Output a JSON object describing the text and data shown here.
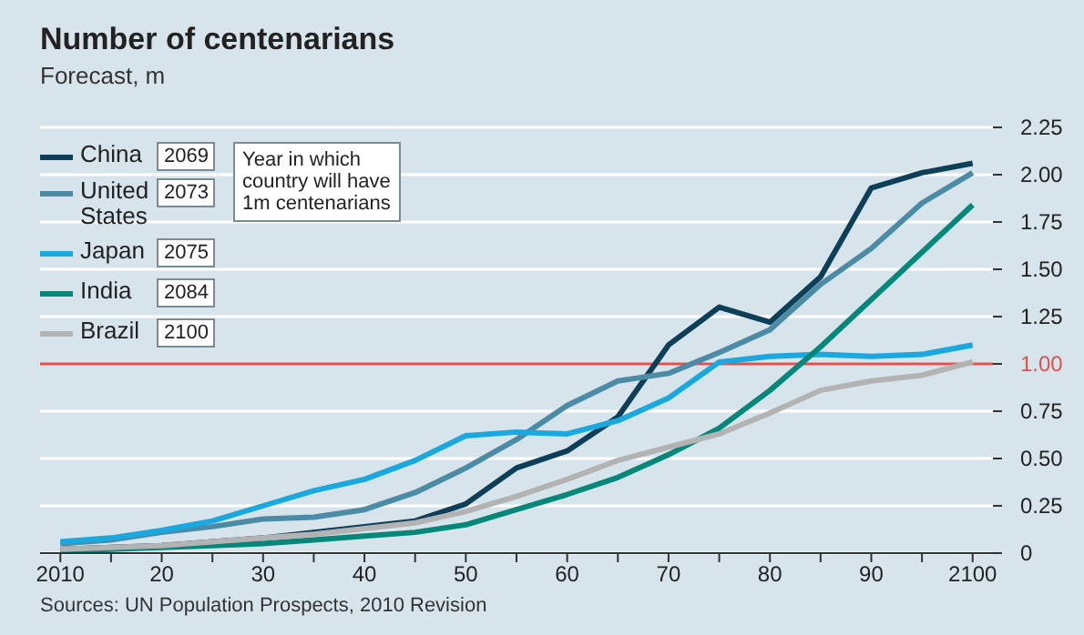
{
  "chart_data": {
    "type": "line",
    "title": "Number of centenarians",
    "subtitle": "Forecast, m",
    "x": [
      2010,
      2015,
      2020,
      2025,
      2030,
      2035,
      2040,
      2045,
      2050,
      2055,
      2060,
      2065,
      2070,
      2075,
      2080,
      2085,
      2090,
      2095,
      2100
    ],
    "series": [
      {
        "name": "China",
        "color": "#0d3f58",
        "values": [
          0.02,
          0.03,
          0.04,
          0.06,
          0.08,
          0.11,
          0.14,
          0.17,
          0.26,
          0.45,
          0.54,
          0.72,
          1.1,
          1.3,
          1.22,
          1.46,
          1.93,
          2.01,
          2.06
        ]
      },
      {
        "name": "United States",
        "color": "#4b8ba6",
        "values": [
          0.05,
          0.07,
          0.11,
          0.14,
          0.18,
          0.19,
          0.23,
          0.32,
          0.45,
          0.6,
          0.78,
          0.91,
          0.95,
          1.06,
          1.18,
          1.42,
          1.61,
          1.85,
          2.01
        ]
      },
      {
        "name": "Japan",
        "color": "#1aa8e0",
        "values": [
          0.06,
          0.08,
          0.12,
          0.17,
          0.25,
          0.33,
          0.39,
          0.49,
          0.62,
          0.64,
          0.63,
          0.7,
          0.82,
          1.01,
          1.04,
          1.05,
          1.04,
          1.05,
          1.1
        ]
      },
      {
        "name": "India",
        "color": "#05877a",
        "values": [
          0.01,
          0.02,
          0.03,
          0.04,
          0.05,
          0.07,
          0.09,
          0.11,
          0.15,
          0.23,
          0.31,
          0.4,
          0.52,
          0.66,
          0.86,
          1.09,
          1.34,
          1.59,
          1.84
        ]
      },
      {
        "name": "Brazil",
        "color": "#b3b3b3",
        "values": [
          0.02,
          0.03,
          0.04,
          0.06,
          0.08,
          0.1,
          0.13,
          0.16,
          0.22,
          0.3,
          0.39,
          0.49,
          0.56,
          0.63,
          0.74,
          0.86,
          0.91,
          0.94,
          1.01
        ]
      }
    ],
    "xlim": [
      2008,
      2102
    ],
    "xticks": [
      {
        "value": 2010,
        "label": "2010"
      },
      {
        "value": 2015,
        "label": null
      },
      {
        "value": 2020,
        "label": "20"
      },
      {
        "value": 2025,
        "label": null
      },
      {
        "value": 2030,
        "label": "30"
      },
      {
        "value": 2035,
        "label": null
      },
      {
        "value": 2040,
        "label": "40"
      },
      {
        "value": 2045,
        "label": null
      },
      {
        "value": 2050,
        "label": "50"
      },
      {
        "value": 2055,
        "label": null
      },
      {
        "value": 2060,
        "label": "60"
      },
      {
        "value": 2065,
        "label": null
      },
      {
        "value": 2070,
        "label": "70"
      },
      {
        "value": 2075,
        "label": null
      },
      {
        "value": 2080,
        "label": "80"
      },
      {
        "value": 2085,
        "label": null
      },
      {
        "value": 2090,
        "label": "90"
      },
      {
        "value": 2095,
        "label": null
      },
      {
        "value": 2100,
        "label": "2100"
      }
    ],
    "ylim": [
      0,
      2.25
    ],
    "yticks": [
      {
        "value": 0,
        "label": "0"
      },
      {
        "value": 0.25,
        "label": "0.25"
      },
      {
        "value": 0.5,
        "label": "0.50"
      },
      {
        "value": 0.75,
        "label": "0.75"
      },
      {
        "value": 1,
        "label": "1.00"
      },
      {
        "value": 1.25,
        "label": "1.25"
      },
      {
        "value": 1.5,
        "label": "1.50"
      },
      {
        "value": 1.75,
        "label": "1.75"
      },
      {
        "value": 2,
        "label": "2.00"
      },
      {
        "value": 2.25,
        "label": "2.25"
      }
    ],
    "ref_lines": [
      {
        "axis": "y",
        "value": 1,
        "color": "#e0504f"
      }
    ],
    "grid": "y",
    "legend": "top left",
    "marker": "none",
    "line_style": "solid",
    "annotations": [
      "2069",
      "2073",
      "2075",
      "2084",
      "2100",
      "Year in which country will have 1m centenarians",
      "Sources: UN Population Prospects, 2010 Revision"
    ]
  }
}
